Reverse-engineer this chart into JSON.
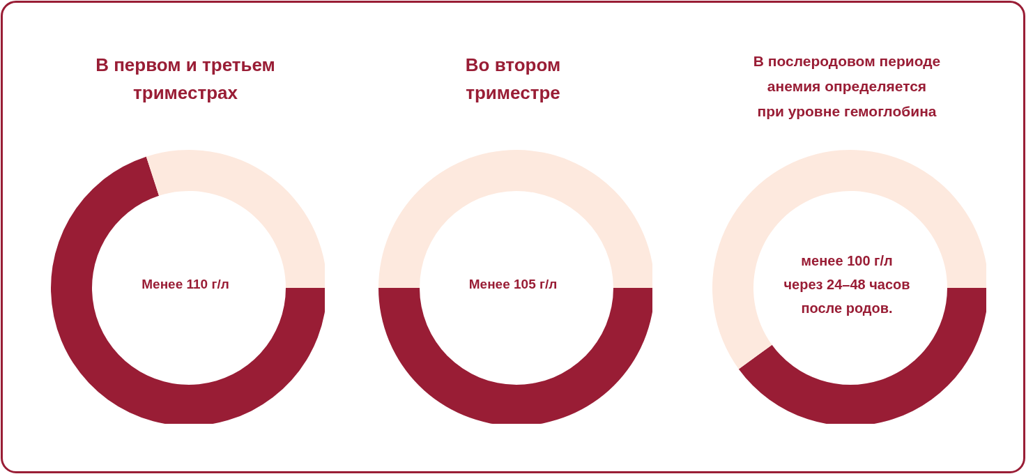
{
  "chart_data": [
    {
      "type": "donut",
      "title": "В первом и третьем\nтриместрах",
      "categories": [
        null,
        null
      ],
      "values": [
        70,
        30
      ],
      "colors": [
        "#991d35",
        "#fde9de"
      ],
      "annotations": [
        "Менее 110 г/л"
      ]
    },
    {
      "type": "donut",
      "title": "Во втором\nтриместре",
      "categories": [
        null,
        null
      ],
      "values": [
        50,
        50
      ],
      "colors": [
        "#991d35",
        "#fde9de"
      ],
      "annotations": [
        "Менее 105 г/л"
      ]
    },
    {
      "type": "donut",
      "title": "В послеродовом периоде\nанемия определяется\nпри уровне гемоглобина",
      "categories": [
        null,
        null
      ],
      "values": [
        40,
        60
      ],
      "colors": [
        "#991d35",
        "#fde9de"
      ],
      "annotations": [
        "менее 100 г/л\nчерез 24–48 часов\nпосле родов."
      ]
    }
  ]
}
